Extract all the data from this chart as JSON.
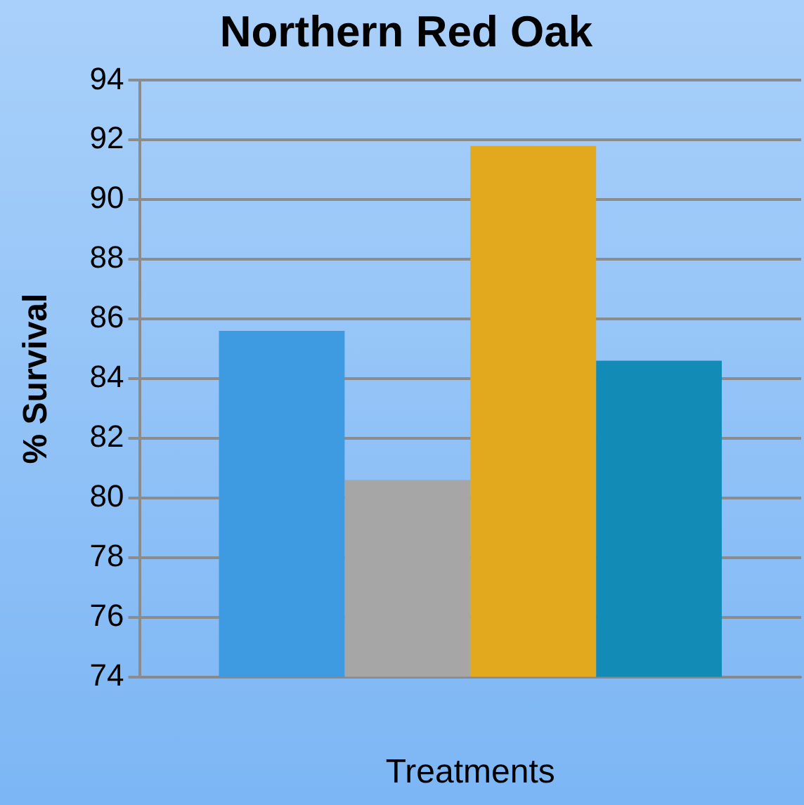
{
  "chart_data": {
    "type": "bar",
    "title": "Northern Red Oak",
    "xlabel": "Treatments",
    "ylabel": "% Survival",
    "categories": [
      null
    ],
    "series": [
      {
        "color": "#3e9be2",
        "values": [
          85.6
        ]
      },
      {
        "color": "#a6a6a6",
        "values": [
          80.6
        ]
      },
      {
        "color": "#e2a81e",
        "values": [
          91.8
        ]
      },
      {
        "color": "#138bb7",
        "values": [
          84.6
        ]
      }
    ],
    "ylim": [
      74,
      94
    ],
    "yticks": [
      74,
      76,
      78,
      80,
      82,
      84,
      86,
      88,
      90,
      92,
      94
    ],
    "grid": "y",
    "legend": false
  }
}
